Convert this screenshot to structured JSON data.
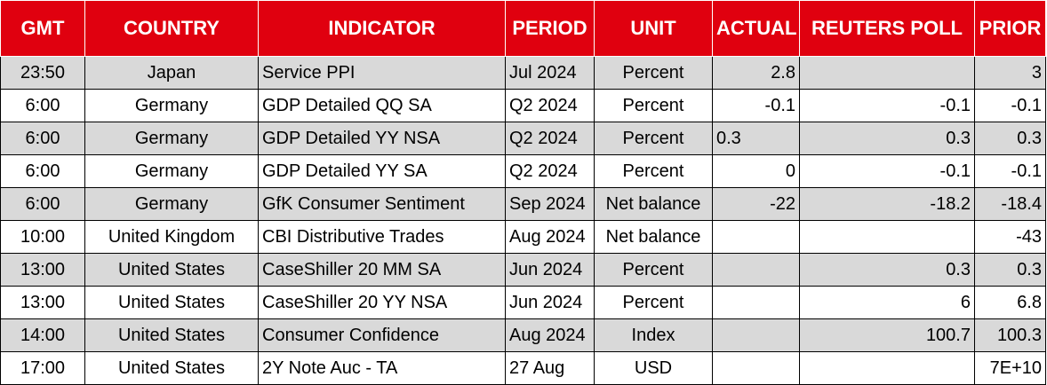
{
  "columns": [
    "GMT",
    "COUNTRY",
    "INDICATOR",
    "PERIOD",
    "UNIT",
    "ACTUAL",
    "REUTERS POLL",
    "PRIOR"
  ],
  "rows": [
    [
      "23:50",
      "Japan",
      "Service PPI",
      "Jul 2024",
      "Percent",
      "2.8",
      "",
      "3"
    ],
    [
      "6:00",
      "Germany",
      "GDP Detailed QQ SA",
      "Q2 2024",
      "Percent",
      "-0.1",
      "-0.1",
      "-0.1"
    ],
    [
      "6:00",
      "Germany",
      "GDP Detailed YY NSA",
      "Q2 2024",
      "Percent",
      "0.3",
      "0.3",
      "0.3"
    ],
    [
      "6:00",
      "Germany",
      "GDP Detailed YY SA",
      "Q2 2024",
      "Percent",
      "0",
      "-0.1",
      "-0.1"
    ],
    [
      "6:00",
      "Germany",
      "GfK Consumer Sentiment",
      "Sep 2024",
      "Net balance",
      "-22",
      "-18.2",
      "-18.4"
    ],
    [
      "10:00",
      "United Kingdom",
      "CBI Distributive Trades",
      "Aug 2024",
      "Net balance",
      "",
      "",
      "-43"
    ],
    [
      "13:00",
      "United States",
      "CaseShiller 20 MM SA",
      "Jun 2024",
      "Percent",
      "",
      "0.3",
      "0.3"
    ],
    [
      "13:00",
      "United States",
      "CaseShiller 20 YY NSA",
      "Jun 2024",
      "Percent",
      "",
      "6",
      "6.8"
    ],
    [
      "14:00",
      "United States",
      "Consumer Confidence",
      "Aug 2024",
      "Index",
      "",
      "100.7",
      "100.3"
    ],
    [
      "17:00",
      "United States",
      "2Y Note Auc - TA",
      "27 Aug",
      "USD",
      "",
      "",
      "7E+10"
    ]
  ],
  "colors": {
    "header_bg": "#e0000f",
    "header_text": "#ffffff",
    "row_alt_bg": "#d9d9d9",
    "row_bg": "#ffffff"
  }
}
